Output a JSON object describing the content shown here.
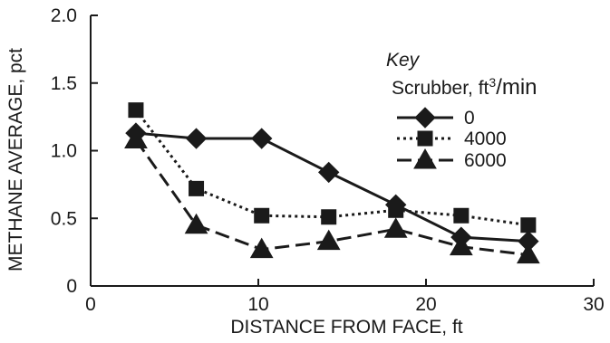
{
  "chart_data": {
    "type": "line",
    "title": "",
    "xlabel": "DISTANCE FROM FACE, ft",
    "ylabel": "METHANE AVERAGE, pct",
    "xlim": [
      0,
      30
    ],
    "ylim": [
      0,
      2.0
    ],
    "x_ticks": [
      "0",
      "10",
      "20",
      "30"
    ],
    "y_ticks": [
      "0",
      "0.5",
      "1.0",
      "1.5",
      "2.0"
    ],
    "x_tick_values": [
      0,
      10,
      20,
      30
    ],
    "y_tick_values": [
      0,
      0.5,
      1.0,
      1.5,
      2.0
    ],
    "grid": false,
    "legend": {
      "placement": "top-right",
      "key_label": "Key",
      "title_prefix": "Scrubber, ft",
      "title_sup": "3",
      "title_suffix": "/min"
    },
    "series": [
      {
        "name": "0",
        "marker": "diamond",
        "line_style": "solid",
        "x": [
          2.7,
          6.3,
          10.2,
          14.2,
          18.2,
          22.1,
          26.1
        ],
        "y": [
          1.13,
          1.09,
          1.09,
          0.84,
          0.6,
          0.36,
          0.33
        ]
      },
      {
        "name": "4000",
        "marker": "square",
        "line_style": "dotted",
        "x": [
          2.7,
          6.3,
          10.2,
          14.2,
          18.2,
          22.1,
          26.1
        ],
        "y": [
          1.3,
          0.72,
          0.52,
          0.51,
          0.56,
          0.52,
          0.45
        ]
      },
      {
        "name": "6000",
        "marker": "triangle",
        "line_style": "dashed",
        "x": [
          2.7,
          6.3,
          10.2,
          14.2,
          18.2,
          22.1,
          26.1
        ],
        "y": [
          1.08,
          0.45,
          0.27,
          0.33,
          0.42,
          0.29,
          0.23
        ]
      }
    ]
  }
}
